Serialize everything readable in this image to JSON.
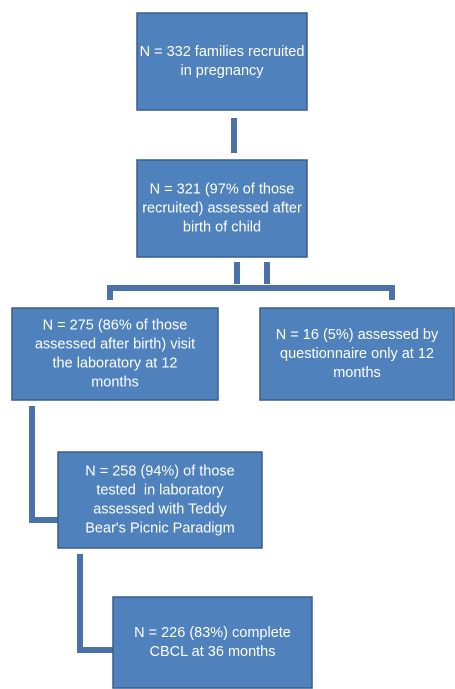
{
  "nodes": [
    {
      "lines": [
        "N = 332 families recruited",
        "in pregnancy"
      ]
    },
    {
      "lines": [
        "N = 321 (97% of those",
        "recruited) assessed after",
        "birth of child"
      ]
    },
    {
      "lines": [
        "N = 275 (86% of those",
        "assessed after birth) visit",
        "the laboratory at 12",
        "months"
      ]
    },
    {
      "lines": [
        "N = 16 (5%) assessed by",
        "questionnaire only at 12",
        "months"
      ]
    },
    {
      "lines": [
        "N = 258 (94%) of those",
        "tested  in laboratory",
        "assessed with Teddy",
        "Bear's Picnic Paradigm"
      ]
    },
    {
      "lines": [
        "N = 226 (83%) complete",
        "CBCL at 36 months"
      ]
    }
  ]
}
